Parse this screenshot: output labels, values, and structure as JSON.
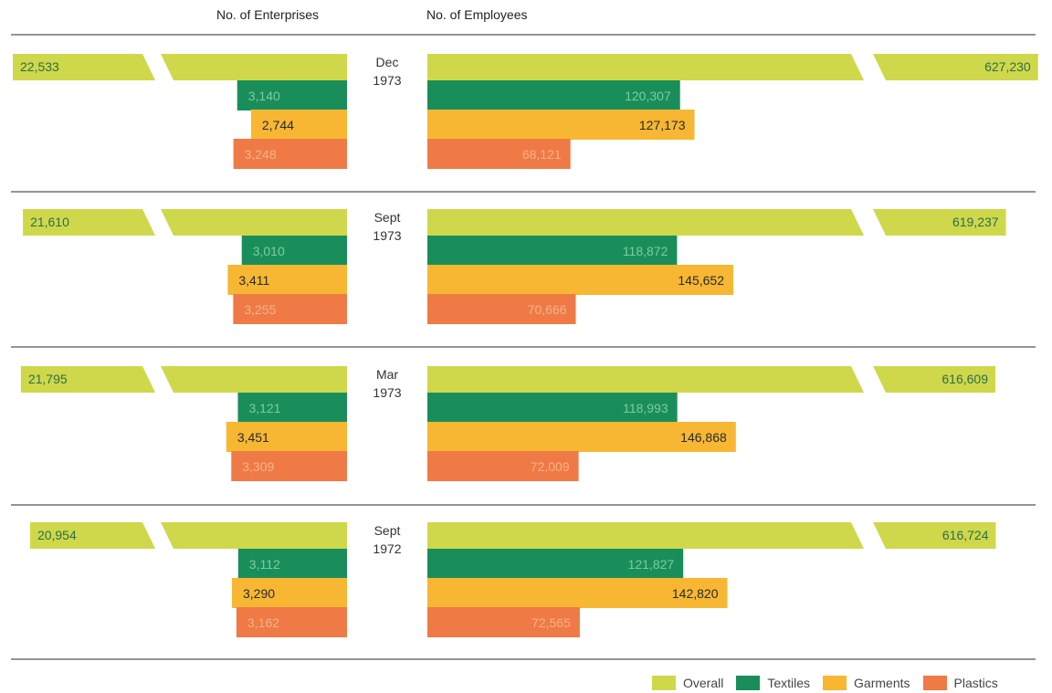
{
  "headers": {
    "enterprises": "No. of Enterprises",
    "employees": "No. of Employees"
  },
  "colors": {
    "Overall": "#cfd84a",
    "Textiles": "#1a8e5a",
    "Garments": "#f7b733",
    "Plastics": "#ef7a45",
    "label_dark": "#2a2a2a",
    "label_on_dark": "#7ccc9e"
  },
  "legend": [
    "Overall",
    "Textiles",
    "Garments",
    "Plastics"
  ],
  "chart_data": {
    "type": "bar",
    "categories": [
      "Dec 1973",
      "Sept 1973",
      "Mar 1973",
      "Sept 1972"
    ],
    "period_labels": [
      [
        "Dec",
        "1973"
      ],
      [
        "Sept",
        "1973"
      ],
      [
        "Mar",
        "1973"
      ],
      [
        "Sept",
        "1972"
      ]
    ],
    "enterprises": {
      "overall": [
        "22,533",
        "21,610",
        "21,795",
        "20,954"
      ],
      "overall_values": [
        22533,
        21610,
        21795,
        20954
      ],
      "series": [
        {
          "name": "Textiles",
          "labels": [
            "3,140",
            "3,010",
            "3,121",
            "3,112"
          ],
          "values": [
            3140,
            3010,
            3121,
            3112
          ]
        },
        {
          "name": "Garments",
          "labels": [
            "2,744",
            "3,411",
            "3,451",
            "3,290"
          ],
          "values": [
            2744,
            3411,
            3451,
            3290
          ]
        },
        {
          "name": "Plastics",
          "labels": [
            "3,248",
            "3,255",
            "3,309",
            "3,162"
          ],
          "values": [
            3248,
            3255,
            3309,
            3162
          ]
        }
      ]
    },
    "employees": {
      "overall": [
        "627,230",
        "619,237",
        "616,609",
        "616,724"
      ],
      "overall_values": [
        627230,
        619237,
        616609,
        616724
      ],
      "series": [
        {
          "name": "Textiles",
          "labels": [
            "120,307",
            "118,872",
            "118,993",
            "121,827"
          ],
          "values": [
            120307,
            118872,
            118993,
            121827
          ]
        },
        {
          "name": "Garments",
          "labels": [
            "127,173",
            "145,652",
            "146,868",
            "142,820"
          ],
          "values": [
            127173,
            145652,
            146868,
            142820
          ]
        },
        {
          "name": "Plastics",
          "labels": [
            "68,121",
            "70,666",
            "72,009",
            "72,565"
          ],
          "values": [
            68121,
            70666,
            72009,
            72565
          ]
        }
      ]
    }
  }
}
